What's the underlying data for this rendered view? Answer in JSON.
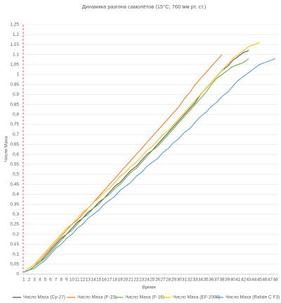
{
  "chart_data": {
    "type": "line",
    "title": "Динамика разгона самолётов (15°С; 760 мм рт. ст.)",
    "x_label": "Время",
    "y_label": "Число Маха",
    "categories": [
      1,
      2,
      3,
      4,
      5,
      6,
      7,
      8,
      9,
      10,
      11,
      12,
      13,
      14,
      15,
      16,
      17,
      18,
      19,
      20,
      21,
      22,
      23,
      24,
      25,
      26,
      27,
      28,
      29,
      30,
      31,
      32,
      33,
      34,
      35,
      36,
      37,
      38,
      39,
      40,
      41,
      42,
      43,
      44,
      45,
      46,
      47,
      48
    ],
    "ylim": [
      0,
      1.25
    ],
    "yticks": [
      0,
      {
        "value": 0.05,
        "label": "0,05"
      },
      {
        "value": 0.1,
        "label": "0,1"
      },
      {
        "value": 0.15,
        "label": "0,15"
      },
      {
        "value": 0.2,
        "label": "0,2"
      },
      {
        "value": 0.25,
        "label": "0,25"
      },
      {
        "value": 0.3,
        "label": "0,3"
      },
      {
        "value": 0.35,
        "label": "0,35"
      },
      {
        "value": 0.4,
        "label": "0,4"
      },
      {
        "value": 0.45,
        "label": "0,45"
      },
      {
        "value": 0.5,
        "label": "0,5"
      },
      {
        "value": 0.55,
        "label": "0,55"
      },
      {
        "value": 0.6,
        "label": "0,6"
      },
      {
        "value": 0.65,
        "label": "0,65"
      },
      {
        "value": 0.7,
        "label": "0,7"
      },
      {
        "value": 0.75,
        "label": "0,75"
      },
      {
        "value": 0.8,
        "label": "0,8"
      },
      {
        "value": 0.85,
        "label": "0,85"
      },
      {
        "value": 0.9,
        "label": "0,9"
      },
      {
        "value": 0.95,
        "label": "0,95"
      },
      1,
      {
        "value": 1.05,
        "label": "1,05"
      },
      {
        "value": 1.1,
        "label": "1,1"
      },
      {
        "value": 1.15,
        "label": "1,15"
      },
      {
        "value": 1.2,
        "label": "1,2"
      },
      {
        "value": 1.25,
        "label": "1,25"
      }
    ],
    "grid": true,
    "series": [
      {
        "name": "Число Маха (Су-27)",
        "color": "#44546a",
        "values": [
          0.01,
          0.02,
          0.04,
          0.06,
          0.09,
          0.12,
          0.15,
          0.18,
          0.2,
          0.23,
          0.26,
          0.28,
          0.31,
          0.33,
          0.36,
          0.38,
          0.41,
          0.44,
          0.46,
          0.49,
          0.52,
          0.54,
          0.57,
          0.6,
          0.62,
          0.65,
          0.68,
          0.71,
          0.74,
          0.77,
          0.8,
          0.83,
          0.86,
          0.9,
          0.93,
          0.96,
          0.99,
          1.02,
          1.04,
          1.07,
          1.09,
          1.11,
          1.12,
          null,
          null,
          null,
          null,
          null
        ]
      },
      {
        "name": "Число Маха (F-15)",
        "color": "#ed7d31",
        "values": [
          0.01,
          0.02,
          0.04,
          0.07,
          0.1,
          0.13,
          0.16,
          0.19,
          0.22,
          0.25,
          0.27,
          0.3,
          0.33,
          0.36,
          0.39,
          0.42,
          0.45,
          0.48,
          0.51,
          0.54,
          0.57,
          0.6,
          0.63,
          0.66,
          0.69,
          0.72,
          0.75,
          0.78,
          0.81,
          0.84,
          0.88,
          0.91,
          0.95,
          0.98,
          1.01,
          1.04,
          1.07,
          1.1,
          null,
          null,
          null,
          null,
          null,
          null,
          null,
          null,
          null,
          null
        ]
      },
      {
        "name": "Число Маха (F-16)",
        "color": "#70ad47",
        "values": [
          0.01,
          0.02,
          0.04,
          0.06,
          0.08,
          0.11,
          0.14,
          0.17,
          0.2,
          0.22,
          0.25,
          0.28,
          0.3,
          0.33,
          0.35,
          0.38,
          0.4,
          0.43,
          0.45,
          0.48,
          0.51,
          0.53,
          0.56,
          0.59,
          0.62,
          0.64,
          0.67,
          0.7,
          0.73,
          0.76,
          0.79,
          0.82,
          0.85,
          0.88,
          0.91,
          0.95,
          0.98,
          1.0,
          1.02,
          1.04,
          1.05,
          1.06,
          1.08,
          null,
          null,
          null,
          null,
          null
        ]
      },
      {
        "name": "Число Маха (EF-2000)",
        "color": "#ffc000",
        "values": [
          0.01,
          0.03,
          0.05,
          0.08,
          0.11,
          0.14,
          0.17,
          0.2,
          0.23,
          0.25,
          0.28,
          0.31,
          0.33,
          0.36,
          0.38,
          0.41,
          0.43,
          0.46,
          0.49,
          0.51,
          0.54,
          0.56,
          0.59,
          0.62,
          0.64,
          0.67,
          0.7,
          0.72,
          0.75,
          0.78,
          0.81,
          0.84,
          0.87,
          0.9,
          0.93,
          0.96,
          0.99,
          1.02,
          1.05,
          1.08,
          1.1,
          1.12,
          1.14,
          1.15,
          1.16,
          null,
          null,
          null
        ]
      },
      {
        "name": "Число Маха (Rafale C F3)",
        "color": "#5b9bd5",
        "values": [
          0.01,
          0.02,
          0.03,
          0.05,
          0.07,
          0.1,
          0.13,
          0.15,
          0.18,
          0.2,
          0.23,
          0.25,
          0.28,
          0.3,
          0.32,
          0.35,
          0.37,
          0.39,
          0.42,
          0.44,
          0.46,
          0.49,
          0.51,
          0.54,
          0.56,
          0.58,
          0.61,
          0.63,
          0.66,
          0.68,
          0.71,
          0.73,
          0.76,
          0.79,
          0.81,
          0.84,
          0.86,
          0.89,
          0.91,
          0.94,
          0.97,
          0.99,
          1.01,
          1.03,
          1.05,
          1.06,
          1.07,
          1.08
        ]
      }
    ]
  }
}
